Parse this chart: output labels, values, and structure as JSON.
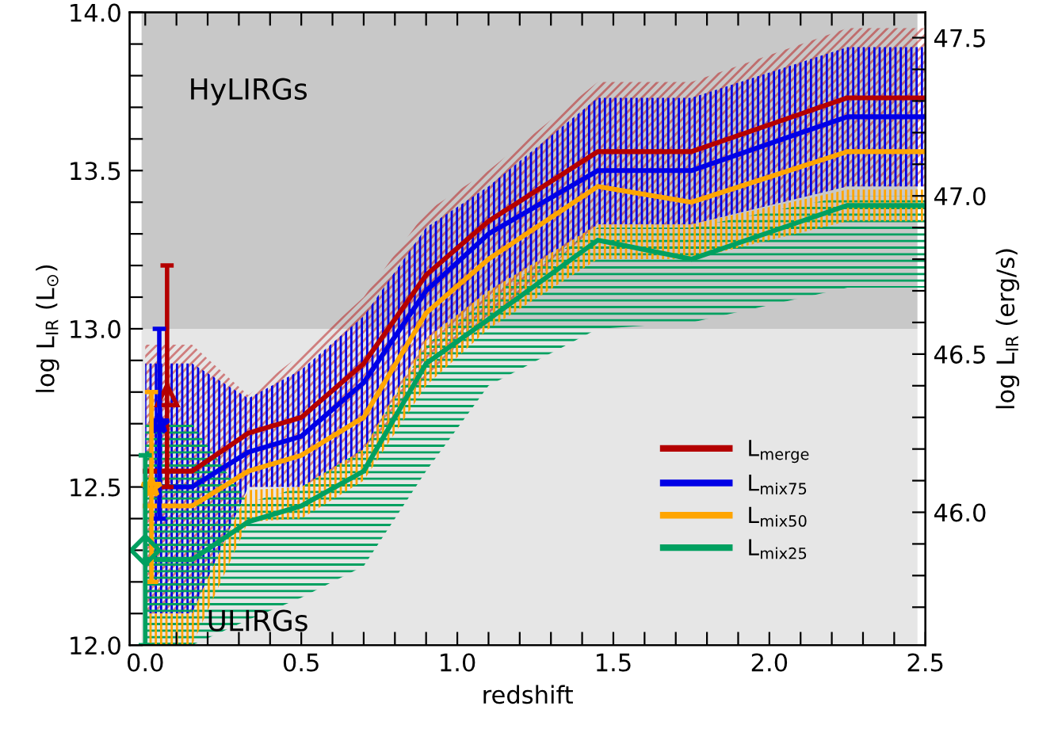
{
  "chart_data": {
    "type": "line",
    "xlabel": "redshift",
    "ylabel": "log L$_{IR}$ (L$_{⊙}$)",
    "y2label": "log L$_{IR}$ (erg/s)",
    "xlim": [
      -0.05,
      2.5
    ],
    "ylim": [
      12.0,
      14.0
    ],
    "y2lim": [
      45.58,
      47.58
    ],
    "xticks": [
      {
        "value": 0.0,
        "label": "0.0"
      },
      {
        "value": 0.1,
        "label": null
      },
      {
        "value": 0.2,
        "label": null
      },
      {
        "value": 0.3,
        "label": null
      },
      {
        "value": 0.4,
        "label": null
      },
      {
        "value": 0.5,
        "label": "0.5"
      },
      {
        "value": 0.6,
        "label": null
      },
      {
        "value": 0.7,
        "label": null
      },
      {
        "value": 0.8,
        "label": null
      },
      {
        "value": 0.9,
        "label": null
      },
      {
        "value": 1.0,
        "label": "1.0"
      },
      {
        "value": 1.1,
        "label": null
      },
      {
        "value": 1.2,
        "label": null
      },
      {
        "value": 1.3,
        "label": null
      },
      {
        "value": 1.4,
        "label": null
      },
      {
        "value": 1.5,
        "label": "1.5"
      },
      {
        "value": 1.6,
        "label": null
      },
      {
        "value": 1.7,
        "label": null
      },
      {
        "value": 1.8,
        "label": null
      },
      {
        "value": 1.9,
        "label": null
      },
      {
        "value": 2.0,
        "label": "2.0"
      },
      {
        "value": 2.1,
        "label": null
      },
      {
        "value": 2.2,
        "label": null
      },
      {
        "value": 2.3,
        "label": null
      },
      {
        "value": 2.4,
        "label": null
      },
      {
        "value": 2.5,
        "label": "2.5"
      }
    ],
    "yticks": [
      {
        "value": 12.0,
        "label": "12.0"
      },
      {
        "value": 12.1,
        "label": null
      },
      {
        "value": 12.2,
        "label": null
      },
      {
        "value": 12.3,
        "label": null
      },
      {
        "value": 12.4,
        "label": null
      },
      {
        "value": 12.5,
        "label": "12.5"
      },
      {
        "value": 12.6,
        "label": null
      },
      {
        "value": 12.7,
        "label": null
      },
      {
        "value": 12.8,
        "label": null
      },
      {
        "value": 12.9,
        "label": null
      },
      {
        "value": 13.0,
        "label": "13.0"
      },
      {
        "value": 13.1,
        "label": null
      },
      {
        "value": 13.2,
        "label": null
      },
      {
        "value": 13.3,
        "label": null
      },
      {
        "value": 13.4,
        "label": null
      },
      {
        "value": 13.5,
        "label": "13.5"
      },
      {
        "value": 13.6,
        "label": null
      },
      {
        "value": 13.7,
        "label": null
      },
      {
        "value": 13.8,
        "label": null
      },
      {
        "value": 13.9,
        "label": null
      },
      {
        "value": 14.0,
        "label": "14.0"
      }
    ],
    "y2ticks": [
      {
        "value": 45.7,
        "label": null
      },
      {
        "value": 45.8,
        "label": null
      },
      {
        "value": 45.9,
        "label": null
      },
      {
        "value": 46.0,
        "label": "46.0"
      },
      {
        "value": 46.1,
        "label": null
      },
      {
        "value": 46.2,
        "label": null
      },
      {
        "value": 46.3,
        "label": null
      },
      {
        "value": 46.4,
        "label": null
      },
      {
        "value": 46.5,
        "label": "46.5"
      },
      {
        "value": 46.6,
        "label": null
      },
      {
        "value": 46.7,
        "label": null
      },
      {
        "value": 46.8,
        "label": null
      },
      {
        "value": 46.9,
        "label": null
      },
      {
        "value": 47.0,
        "label": "47.0"
      },
      {
        "value": 47.1,
        "label": null
      },
      {
        "value": 47.2,
        "label": null
      },
      {
        "value": 47.3,
        "label": null
      },
      {
        "value": 47.4,
        "label": null
      },
      {
        "value": 47.5,
        "label": "47.5"
      }
    ],
    "bands": [
      {
        "axis": "y",
        "from": 13.0,
        "to": 14.0,
        "label": "HyLIRGs",
        "color": "#c8c8c8"
      },
      {
        "axis": "y",
        "from": 12.0,
        "to": 13.0,
        "label": "ULIRGs",
        "color": "#e6e6e6"
      }
    ],
    "grid": false,
    "legend": "center right",
    "line_style": "solid",
    "marker": "none",
    "series": [
      {
        "name": "L$_{merge}$",
        "color": "#b40000",
        "x": [
          0.0,
          0.15,
          0.33,
          0.5,
          0.7,
          0.9,
          1.1,
          1.45,
          1.75,
          2.25,
          2.5
        ],
        "values": [
          12.55,
          12.55,
          12.67,
          12.72,
          12.89,
          13.17,
          13.34,
          13.56,
          13.56,
          13.73,
          13.73
        ],
        "lower": [
          12.1,
          12.1,
          12.5,
          12.5,
          12.6,
          12.85,
          13.02,
          13.33,
          13.33,
          13.45,
          13.45
        ],
        "upper": [
          12.95,
          12.95,
          12.79,
          12.92,
          13.1,
          13.37,
          13.5,
          13.78,
          13.78,
          13.95,
          13.95
        ]
      },
      {
        "name": "L$_{mix75}$",
        "color": "#0000e6",
        "x": [
          0.0,
          0.15,
          0.33,
          0.5,
          0.7,
          0.9,
          1.1,
          1.45,
          1.75,
          2.25,
          2.5
        ],
        "values": [
          12.5,
          12.5,
          12.61,
          12.66,
          12.83,
          13.12,
          13.3,
          13.5,
          13.5,
          13.67,
          13.67
        ],
        "lower": [
          12.1,
          12.1,
          12.5,
          12.5,
          12.6,
          12.85,
          13.02,
          13.33,
          13.33,
          13.45,
          13.45
        ],
        "upper": [
          12.89,
          12.89,
          12.78,
          12.87,
          13.04,
          13.32,
          13.45,
          13.73,
          13.73,
          13.89,
          13.89
        ]
      },
      {
        "name": "L$_{mix50}$",
        "color": "#ffa500",
        "x": [
          0.0,
          0.15,
          0.33,
          0.5,
          0.7,
          0.9,
          1.1,
          1.45,
          1.75,
          2.25,
          2.5
        ],
        "values": [
          12.44,
          12.44,
          12.55,
          12.6,
          12.72,
          13.05,
          13.22,
          13.45,
          13.4,
          13.56,
          13.56
        ],
        "lower": [
          12.0,
          12.0,
          12.39,
          12.4,
          12.52,
          12.82,
          13.0,
          13.22,
          13.22,
          13.34,
          13.34
        ],
        "upper": [
          12.1,
          12.1,
          12.49,
          12.5,
          12.62,
          12.97,
          13.12,
          13.33,
          13.33,
          13.44,
          13.44
        ]
      },
      {
        "name": "L$_{mix25}$",
        "color": "#00a060",
        "x": [
          0.0,
          0.15,
          0.33,
          0.5,
          0.7,
          0.9,
          1.1,
          1.45,
          1.75,
          2.25,
          2.5
        ],
        "values": [
          12.27,
          12.27,
          12.39,
          12.44,
          12.55,
          12.89,
          13.03,
          13.28,
          13.22,
          13.39,
          13.39
        ],
        "lower": [
          12.0,
          12.0,
          12.08,
          12.15,
          12.25,
          12.55,
          12.82,
          13.0,
          13.02,
          13.13,
          13.13
        ],
        "upper": [
          12.7,
          12.7,
          12.45,
          12.5,
          12.62,
          12.95,
          13.1,
          13.32,
          13.32,
          13.42,
          13.42
        ]
      },
      {
        "type": "scatter",
        "color": "#b40000",
        "marker": "triangle",
        "x": [
          0.07
        ],
        "values": [
          12.79
        ],
        "errors": [
          [
            12.5,
            13.2
          ]
        ]
      },
      {
        "type": "scatter",
        "color": "#0000e6",
        "marker": "star",
        "x": [
          0.045
        ],
        "values": [
          12.7
        ],
        "errors": [
          [
            12.4,
            13.0
          ]
        ]
      },
      {
        "type": "scatter",
        "color": "#ffa500",
        "marker": "star",
        "x": [
          0.02
        ],
        "values": [
          12.5
        ],
        "errors": [
          [
            12.2,
            12.8
          ]
        ]
      },
      {
        "type": "scatter",
        "color": "#00a060",
        "marker": "diamond",
        "x": [
          0.0
        ],
        "values": [
          12.3
        ],
        "errors": [
          [
            12.0,
            12.6
          ]
        ]
      }
    ]
  }
}
